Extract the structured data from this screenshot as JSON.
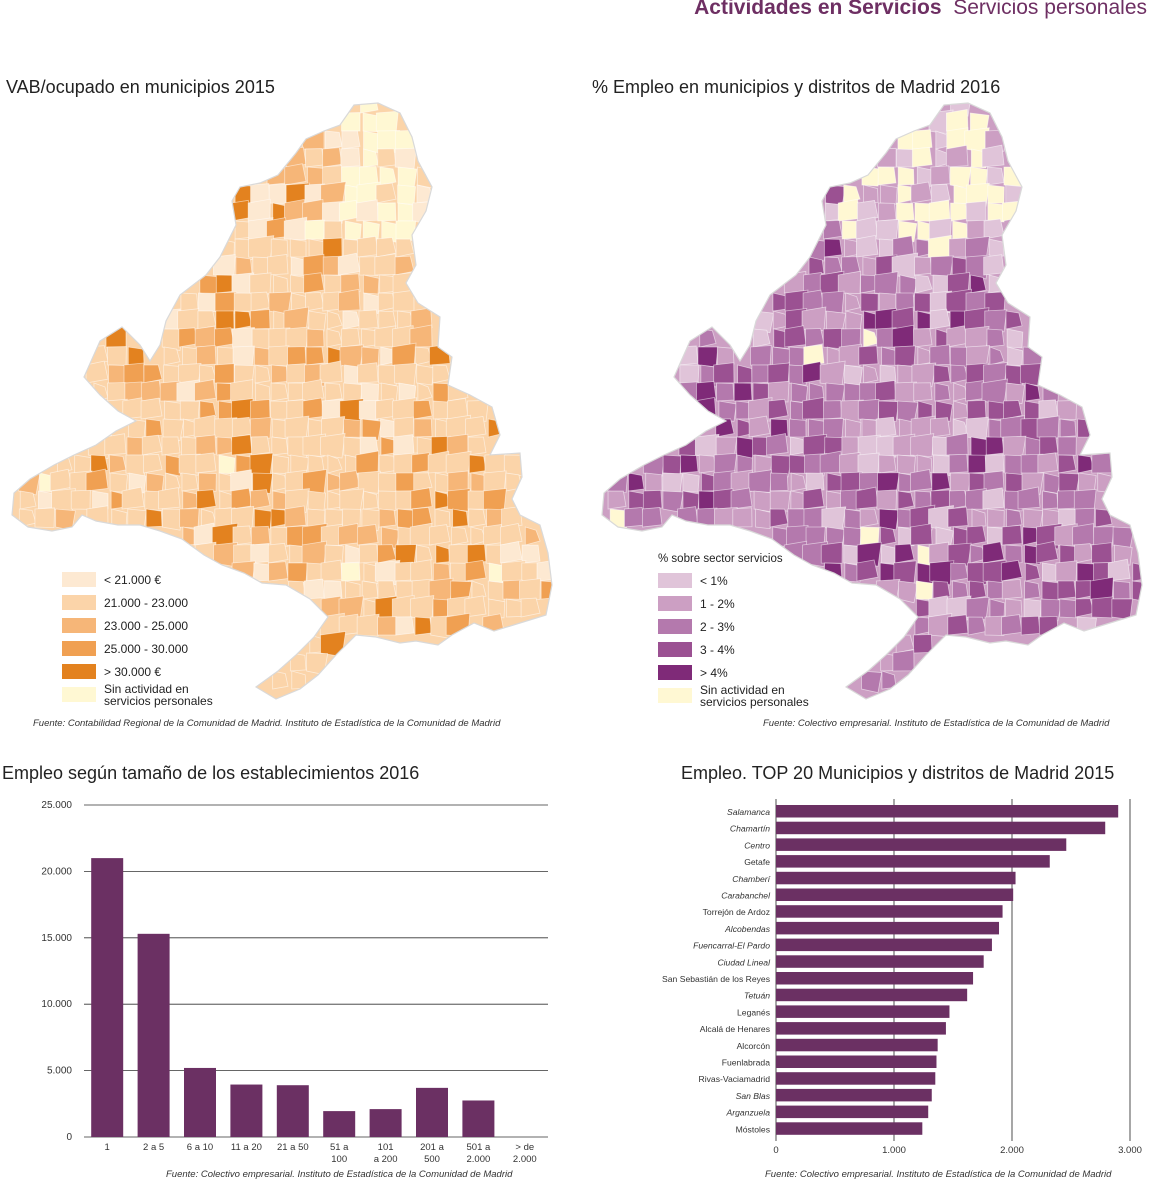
{
  "header": {
    "title_bold": "Actividades en Servicios",
    "title_light": "Servicios personales"
  },
  "map1": {
    "title": "VAB/ocupado en municipios  2015",
    "legend": [
      {
        "label": "< 21.000 €",
        "color": "#fde9d2"
      },
      {
        "label": "21.000 - 23.000",
        "color": "#fbd4a9"
      },
      {
        "label": "23.000 - 25.000",
        "color": "#f6b678"
      },
      {
        "label": "25.000 - 30.000",
        "color": "#f0a052"
      },
      {
        "label": "> 30.000 €",
        "color": "#e3821f"
      },
      {
        "label": "Sin actividad en\nservicios personales",
        "color": "#fff8d3"
      }
    ],
    "source": "Fuente: Contabilidad Regional de la Comunidad de Madrid. Instituto de Estadística de la Comunidad de Madrid"
  },
  "map2": {
    "title": "% Empleo en municipios y distritos de Madrid  2016",
    "legend_title": "% sobre sector servicios",
    "legend": [
      {
        "label": "< 1%",
        "color": "#e0c4d9"
      },
      {
        "label": "1 - 2%",
        "color": "#cc9fc3"
      },
      {
        "label": "2 - 3%",
        "color": "#b479ad"
      },
      {
        "label": "3 - 4%",
        "color": "#9b5192"
      },
      {
        "label": "> 4%",
        "color": "#7f2a78"
      },
      {
        "label": "Sin actividad en\nservicios personales",
        "color": "#fff8d3"
      }
    ],
    "source": "Fuente: Colectivo empresarial. Instituto de Estadística de la Comunidad de Madrid"
  },
  "chart1": {
    "title": "Empleo según tamaño de los establecimientos  2016",
    "source": "Fuente: Colectivo empresarial. Instituto de Estadística de la Comunidad de Madrid"
  },
  "chart2": {
    "title": "Empleo. TOP 20 Municipios y distritos de Madrid  2015",
    "source": "Fuente: Colectivo empresarial. Instituto de Estadística de la Comunidad de Madrid"
  },
  "chart_data": [
    {
      "type": "bar",
      "orientation": "vertical",
      "title": "Empleo según tamaño de los establecimientos  2016",
      "categories": [
        "1",
        "2 a 5",
        "6 a 10",
        "11 a 20",
        "21 a 50",
        "51 a\n100",
        "101\na 200",
        "201 a\n500",
        "501 a\n2.000",
        "> de\n2.000"
      ],
      "values": [
        21000,
        15300,
        5200,
        3950,
        3900,
        1950,
        2100,
        3700,
        2750,
        0
      ],
      "yticks": [
        "0",
        "5.000",
        "10.000",
        "15.000",
        "20.000",
        "25.000"
      ],
      "ylim": [
        0,
        25000
      ],
      "grid": true,
      "color": "#6b3063"
    },
    {
      "type": "bar",
      "orientation": "horizontal",
      "title": "Empleo. TOP 20 Municipios y distritos de Madrid  2015",
      "categories": [
        "Salamanca",
        "Chamartín",
        "Centro",
        "Getafe",
        "Chamberí",
        "Carabanchel",
        "Torrejón de Ardoz",
        "Alcobendas",
        "Fuencarral-El Pardo",
        "Ciudad Lineal",
        "San Sebastián de los Reyes",
        "Tetuán",
        "Leganés",
        "Alcalá de Henares",
        "Alcorcón",
        "Fuenlabrada",
        "Rivas-Vaciamadrid",
        "San Blas",
        "Arganzuela",
        "Móstoles"
      ],
      "italic": [
        true,
        true,
        true,
        false,
        true,
        true,
        false,
        true,
        true,
        true,
        false,
        true,
        false,
        false,
        false,
        false,
        false,
        true,
        true,
        false
      ],
      "values": [
        2900,
        2790,
        2460,
        2320,
        2030,
        2010,
        1920,
        1890,
        1830,
        1760,
        1670,
        1620,
        1470,
        1440,
        1370,
        1360,
        1350,
        1320,
        1290,
        1240
      ],
      "xticks": [
        "0",
        "1.000",
        "2.000",
        "3.000"
      ],
      "xlim": [
        0,
        3000
      ],
      "grid": true,
      "color": "#6b3063"
    }
  ]
}
